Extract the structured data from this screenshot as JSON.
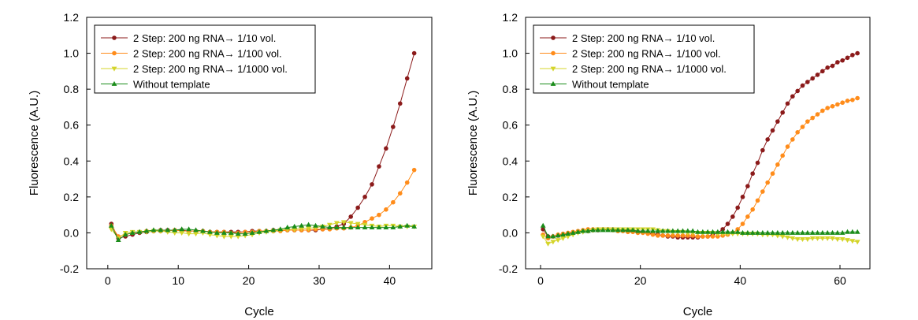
{
  "chart_data": [
    {
      "type": "line",
      "title": "",
      "xlabel": "Cycle",
      "ylabel": "Fluorescence (A.U.)",
      "xlim": [
        -3,
        46
      ],
      "ylim": [
        -0.2,
        1.2
      ],
      "x_ticks": [
        0,
        10,
        20,
        30,
        40
      ],
      "y_ticks": [
        -0.2,
        0.0,
        0.2,
        0.4,
        0.6,
        0.8,
        1.0,
        1.2
      ],
      "y_tick_labels": [
        "-0.2",
        "0.0",
        "0.2",
        "0.4",
        "0.6",
        "0.8",
        "1.0",
        "1.2"
      ],
      "legend_position": "top-left",
      "series": [
        {
          "name": "2 Step: 200 ng RNA→ 1/10 vol.",
          "color": "#8b1a1a",
          "marker": "circle",
          "x": [
            0.5,
            1.5,
            2.5,
            3.5,
            4.5,
            5.5,
            6.5,
            7.5,
            8.5,
            9.5,
            10.5,
            11.5,
            12.5,
            13.5,
            14.5,
            15.5,
            16.5,
            17.5,
            18.5,
            19.5,
            20.5,
            21.5,
            22.5,
            23.5,
            24.5,
            25.5,
            26.5,
            27.5,
            28.5,
            29.5,
            30.5,
            31.5,
            32.5,
            33.5,
            34.5,
            35.5,
            36.5,
            37.5,
            38.5,
            39.5,
            40.5,
            41.5,
            42.5,
            43.5
          ],
          "y": [
            0.05,
            -0.03,
            -0.02,
            -0.01,
            0.0,
            0.005,
            0.01,
            0.015,
            0.015,
            0.015,
            0.015,
            0.01,
            0.01,
            0.01,
            0.005,
            0.005,
            0.005,
            0.005,
            0.005,
            0.005,
            0.01,
            0.01,
            0.01,
            0.015,
            0.015,
            0.015,
            0.015,
            0.015,
            0.015,
            0.015,
            0.02,
            0.025,
            0.035,
            0.05,
            0.09,
            0.14,
            0.2,
            0.27,
            0.37,
            0.47,
            0.59,
            0.72,
            0.86,
            1.0
          ]
        },
        {
          "name": "2 Step: 200 ng RNA→ 1/100 vol.",
          "color": "#ff8c1a",
          "marker": "circle",
          "x": [
            0.5,
            1.5,
            2.5,
            3.5,
            4.5,
            5.5,
            6.5,
            7.5,
            8.5,
            9.5,
            10.5,
            11.5,
            12.5,
            13.5,
            14.5,
            15.5,
            16.5,
            17.5,
            18.5,
            19.5,
            20.5,
            21.5,
            22.5,
            23.5,
            24.5,
            25.5,
            26.5,
            27.5,
            28.5,
            29.5,
            30.5,
            31.5,
            32.5,
            33.5,
            34.5,
            35.5,
            36.5,
            37.5,
            38.5,
            39.5,
            40.5,
            41.5,
            42.5,
            43.5
          ],
          "y": [
            0.04,
            -0.02,
            -0.01,
            0.0,
            0.005,
            0.01,
            0.01,
            0.01,
            0.01,
            0.015,
            0.01,
            0.01,
            0.01,
            0.01,
            0.005,
            0.005,
            0.005,
            0.0,
            0.0,
            0.005,
            0.005,
            0.01,
            0.01,
            0.01,
            0.01,
            0.015,
            0.015,
            0.015,
            0.015,
            0.02,
            0.02,
            0.02,
            0.025,
            0.025,
            0.03,
            0.04,
            0.06,
            0.08,
            0.1,
            0.13,
            0.17,
            0.22,
            0.28,
            0.35
          ]
        },
        {
          "name": "2 Step: 200 ng RNA→ 1/1000 vol.",
          "color": "#d4d42a",
          "marker": "triangle-down",
          "x": [
            0.5,
            1.5,
            2.5,
            3.5,
            4.5,
            5.5,
            6.5,
            7.5,
            8.5,
            9.5,
            10.5,
            11.5,
            12.5,
            13.5,
            14.5,
            15.5,
            16.5,
            17.5,
            18.5,
            19.5,
            20.5,
            21.5,
            22.5,
            23.5,
            24.5,
            25.5,
            26.5,
            27.5,
            28.5,
            29.5,
            30.5,
            31.5,
            32.5,
            33.5,
            34.5,
            35.5,
            36.5,
            37.5,
            38.5,
            39.5,
            40.5,
            41.5,
            42.5,
            43.5
          ],
          "y": [
            0.02,
            -0.03,
            0.0,
            0.005,
            0.005,
            0.005,
            0.01,
            0.01,
            0.005,
            0.0,
            0.0,
            -0.005,
            -0.005,
            0.0,
            -0.01,
            -0.015,
            -0.02,
            -0.02,
            -0.02,
            -0.015,
            -0.01,
            0.0,
            0.005,
            0.01,
            0.015,
            0.02,
            0.02,
            0.025,
            0.025,
            0.03,
            0.035,
            0.045,
            0.055,
            0.06,
            0.055,
            0.05,
            0.045,
            0.04,
            0.035,
            0.04,
            0.04,
            0.035,
            0.035,
            0.035
          ]
        },
        {
          "name": "Without template",
          "color": "#1a8c1a",
          "marker": "triangle-up",
          "x": [
            0.5,
            1.5,
            2.5,
            3.5,
            4.5,
            5.5,
            6.5,
            7.5,
            8.5,
            9.5,
            10.5,
            11.5,
            12.5,
            13.5,
            14.5,
            15.5,
            16.5,
            17.5,
            18.5,
            19.5,
            20.5,
            21.5,
            22.5,
            23.5,
            24.5,
            25.5,
            26.5,
            27.5,
            28.5,
            29.5,
            30.5,
            31.5,
            32.5,
            33.5,
            34.5,
            35.5,
            36.5,
            37.5,
            38.5,
            39.5,
            40.5,
            41.5,
            42.5,
            43.5
          ],
          "y": [
            0.04,
            -0.04,
            -0.01,
            0.0,
            0.005,
            0.01,
            0.015,
            0.015,
            0.015,
            0.015,
            0.02,
            0.02,
            0.015,
            0.01,
            0.005,
            0.0,
            0.0,
            0.0,
            -0.005,
            -0.005,
            0.0,
            0.005,
            0.01,
            0.015,
            0.02,
            0.03,
            0.035,
            0.04,
            0.045,
            0.04,
            0.035,
            0.03,
            0.03,
            0.03,
            0.03,
            0.03,
            0.03,
            0.03,
            0.03,
            0.03,
            0.03,
            0.035,
            0.04,
            0.035
          ]
        }
      ]
    },
    {
      "type": "line",
      "title": "",
      "xlabel": "Cycle",
      "ylabel": "Fluorescence (A.U.)",
      "xlim": [
        -3,
        66
      ],
      "ylim": [
        -0.2,
        1.2
      ],
      "x_ticks": [
        0,
        20,
        40,
        60
      ],
      "y_ticks": [
        -0.2,
        0.0,
        0.2,
        0.4,
        0.6,
        0.8,
        1.0,
        1.2
      ],
      "y_tick_labels": [
        "-0.2",
        "0.0",
        "0.2",
        "0.4",
        "0.6",
        "0.8",
        "1.0",
        "1.2"
      ],
      "legend_position": "top-left",
      "series": [
        {
          "name": "2 Step: 200 ng RNA→ 1/10 vol.",
          "color": "#8b1a1a",
          "marker": "circle",
          "x": [
            0.5,
            1.5,
            2.5,
            3.5,
            4.5,
            5.5,
            6.5,
            7.5,
            8.5,
            9.5,
            10.5,
            11.5,
            12.5,
            13.5,
            14.5,
            15.5,
            16.5,
            17.5,
            18.5,
            19.5,
            20.5,
            21.5,
            22.5,
            23.5,
            24.5,
            25.5,
            26.5,
            27.5,
            28.5,
            29.5,
            30.5,
            31.5,
            32.5,
            33.5,
            34.5,
            35.5,
            36.5,
            37.5,
            38.5,
            39.5,
            40.5,
            41.5,
            42.5,
            43.5,
            44.5,
            45.5,
            46.5,
            47.5,
            48.5,
            49.5,
            50.5,
            51.5,
            52.5,
            53.5,
            54.5,
            55.5,
            56.5,
            57.5,
            58.5,
            59.5,
            60.5,
            61.5,
            62.5,
            63.5
          ],
          "y": [
            0.02,
            -0.02,
            -0.02,
            -0.015,
            -0.01,
            -0.005,
            0.0,
            0.005,
            0.01,
            0.01,
            0.015,
            0.015,
            0.02,
            0.02,
            0.02,
            0.015,
            0.015,
            0.01,
            0.01,
            0.005,
            0.005,
            0.0,
            -0.005,
            -0.01,
            -0.015,
            -0.02,
            -0.02,
            -0.025,
            -0.025,
            -0.025,
            -0.025,
            -0.025,
            -0.02,
            -0.02,
            -0.01,
            0.0,
            0.02,
            0.05,
            0.09,
            0.14,
            0.2,
            0.26,
            0.33,
            0.39,
            0.46,
            0.52,
            0.57,
            0.62,
            0.67,
            0.72,
            0.76,
            0.79,
            0.82,
            0.84,
            0.86,
            0.88,
            0.9,
            0.92,
            0.93,
            0.95,
            0.96,
            0.975,
            0.99,
            1.0
          ]
        },
        {
          "name": "2 Step: 200 ng RNA→ 1/100 vol.",
          "color": "#ff8c1a",
          "marker": "circle",
          "x": [
            0.5,
            1.5,
            2.5,
            3.5,
            4.5,
            5.5,
            6.5,
            7.5,
            8.5,
            9.5,
            10.5,
            11.5,
            12.5,
            13.5,
            14.5,
            15.5,
            16.5,
            17.5,
            18.5,
            19.5,
            20.5,
            21.5,
            22.5,
            23.5,
            24.5,
            25.5,
            26.5,
            27.5,
            28.5,
            29.5,
            30.5,
            31.5,
            32.5,
            33.5,
            34.5,
            35.5,
            36.5,
            37.5,
            38.5,
            39.5,
            40.5,
            41.5,
            42.5,
            43.5,
            44.5,
            45.5,
            46.5,
            47.5,
            48.5,
            49.5,
            50.5,
            51.5,
            52.5,
            53.5,
            54.5,
            55.5,
            56.5,
            57.5,
            58.5,
            59.5,
            60.5,
            61.5,
            62.5,
            63.5
          ],
          "y": [
            -0.01,
            -0.03,
            -0.02,
            -0.01,
            -0.005,
            0.0,
            0.005,
            0.01,
            0.015,
            0.02,
            0.02,
            0.02,
            0.02,
            0.02,
            0.015,
            0.01,
            0.01,
            0.005,
            0.005,
            0.0,
            0.0,
            -0.005,
            -0.01,
            -0.015,
            -0.015,
            -0.015,
            -0.015,
            -0.015,
            -0.015,
            -0.015,
            -0.015,
            -0.02,
            -0.02,
            -0.02,
            -0.02,
            -0.02,
            -0.015,
            -0.01,
            0.0,
            0.02,
            0.05,
            0.09,
            0.13,
            0.18,
            0.23,
            0.28,
            0.33,
            0.38,
            0.43,
            0.48,
            0.52,
            0.56,
            0.59,
            0.62,
            0.64,
            0.66,
            0.68,
            0.695,
            0.705,
            0.715,
            0.725,
            0.735,
            0.74,
            0.75
          ]
        },
        {
          "name": "2 Step: 200 ng RNA→ 1/1000 vol.",
          "color": "#d4d42a",
          "marker": "triangle-down",
          "x": [
            0.5,
            1.5,
            2.5,
            3.5,
            4.5,
            5.5,
            6.5,
            7.5,
            8.5,
            9.5,
            10.5,
            11.5,
            12.5,
            13.5,
            14.5,
            15.5,
            16.5,
            17.5,
            18.5,
            19.5,
            20.5,
            21.5,
            22.5,
            23.5,
            24.5,
            25.5,
            26.5,
            27.5,
            28.5,
            29.5,
            30.5,
            31.5,
            32.5,
            33.5,
            34.5,
            35.5,
            36.5,
            37.5,
            38.5,
            39.5,
            40.5,
            41.5,
            42.5,
            43.5,
            44.5,
            45.5,
            46.5,
            47.5,
            48.5,
            49.5,
            50.5,
            51.5,
            52.5,
            53.5,
            54.5,
            55.5,
            56.5,
            57.5,
            58.5,
            59.5,
            60.5,
            61.5,
            62.5,
            63.5
          ],
          "y": [
            -0.02,
            -0.06,
            -0.05,
            -0.04,
            -0.03,
            -0.02,
            -0.01,
            0.0,
            0.005,
            0.01,
            0.015,
            0.02,
            0.02,
            0.02,
            0.02,
            0.02,
            0.02,
            0.02,
            0.02,
            0.02,
            0.02,
            0.02,
            0.02,
            0.015,
            0.01,
            0.01,
            0.005,
            0.005,
            0.005,
            0.0,
            0.0,
            0.0,
            0.0,
            0.0,
            0.0,
            -0.005,
            -0.005,
            -0.005,
            -0.005,
            -0.005,
            -0.005,
            -0.005,
            -0.005,
            -0.005,
            -0.01,
            -0.01,
            -0.01,
            -0.015,
            -0.02,
            -0.025,
            -0.03,
            -0.035,
            -0.035,
            -0.035,
            -0.03,
            -0.03,
            -0.03,
            -0.03,
            -0.03,
            -0.035,
            -0.035,
            -0.04,
            -0.045,
            -0.05
          ]
        },
        {
          "name": "Without template",
          "color": "#1a8c1a",
          "marker": "triangle-up",
          "x": [
            0.5,
            1.5,
            2.5,
            3.5,
            4.5,
            5.5,
            6.5,
            7.5,
            8.5,
            9.5,
            10.5,
            11.5,
            12.5,
            13.5,
            14.5,
            15.5,
            16.5,
            17.5,
            18.5,
            19.5,
            20.5,
            21.5,
            22.5,
            23.5,
            24.5,
            25.5,
            26.5,
            27.5,
            28.5,
            29.5,
            30.5,
            31.5,
            32.5,
            33.5,
            34.5,
            35.5,
            36.5,
            37.5,
            38.5,
            39.5,
            40.5,
            41.5,
            42.5,
            43.5,
            44.5,
            45.5,
            46.5,
            47.5,
            48.5,
            49.5,
            50.5,
            51.5,
            52.5,
            53.5,
            54.5,
            55.5,
            56.5,
            57.5,
            58.5,
            59.5,
            60.5,
            61.5,
            62.5,
            63.5
          ],
          "y": [
            0.04,
            -0.02,
            -0.02,
            -0.015,
            -0.01,
            -0.005,
            0.0,
            0.005,
            0.01,
            0.01,
            0.015,
            0.015,
            0.015,
            0.015,
            0.015,
            0.015,
            0.015,
            0.015,
            0.015,
            0.01,
            0.01,
            0.01,
            0.01,
            0.01,
            0.01,
            0.01,
            0.01,
            0.01,
            0.01,
            0.01,
            0.01,
            0.005,
            0.005,
            0.005,
            0.005,
            0.005,
            0.005,
            0.005,
            0.005,
            0.005,
            0.0,
            0.0,
            0.0,
            0.0,
            0.0,
            0.0,
            0.0,
            0.0,
            0.0,
            0.0,
            0.0,
            0.0,
            0.0,
            0.0,
            0.0,
            0.0,
            0.0,
            0.0,
            0.0,
            0.0,
            0.0,
            0.005,
            0.005,
            0.005
          ]
        }
      ]
    }
  ]
}
